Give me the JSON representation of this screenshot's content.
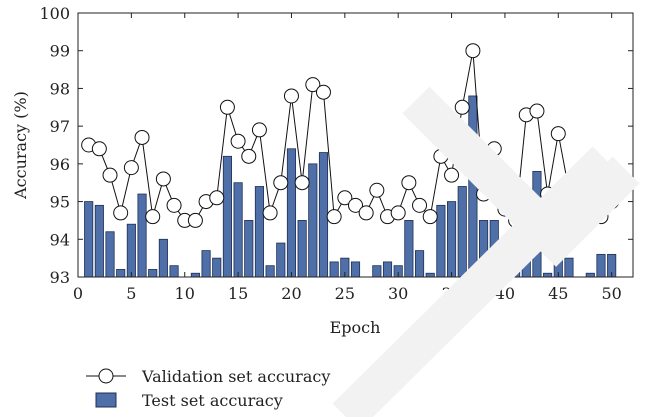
{
  "chart_data": {
    "type": "bar",
    "xlabel": "Epoch",
    "ylabel": "Accuracy (%)",
    "xlim": [
      0,
      52
    ],
    "ylim": [
      93,
      100
    ],
    "x_ticks": [
      0,
      5,
      10,
      15,
      20,
      25,
      30,
      35,
      40,
      45,
      50
    ],
    "y_ticks": [
      93,
      94,
      95,
      96,
      97,
      98,
      99,
      100
    ],
    "grid": false,
    "legend_position": "bottom-left",
    "colors": {
      "bar_fill": "#4f6fa8",
      "bar_stroke": "#1f2f55",
      "line": "#111111"
    },
    "epochs": [
      1,
      2,
      3,
      4,
      5,
      6,
      7,
      8,
      9,
      10,
      11,
      12,
      13,
      14,
      15,
      16,
      17,
      18,
      19,
      20,
      21,
      22,
      23,
      24,
      25,
      26,
      27,
      28,
      29,
      30,
      31,
      32,
      33,
      34,
      35,
      36,
      37,
      38,
      39,
      40,
      41,
      42,
      43,
      44,
      45,
      46,
      47,
      48,
      49,
      50
    ],
    "series": [
      {
        "name": "Validation set accuracy",
        "kind": "line",
        "values": [
          96.5,
          96.4,
          95.7,
          94.7,
          95.9,
          96.7,
          94.6,
          95.6,
          94.9,
          94.5,
          94.5,
          95.0,
          95.1,
          97.5,
          96.6,
          96.2,
          96.9,
          94.7,
          95.5,
          97.8,
          95.5,
          98.1,
          97.9,
          94.6,
          95.1,
          94.9,
          94.7,
          95.3,
          94.6,
          94.7,
          95.5,
          94.9,
          94.6,
          96.2,
          95.7,
          97.5,
          99.0,
          95.2,
          96.4,
          94.8,
          94.5,
          97.3,
          97.4,
          95.2,
          96.8,
          95.3,
          94.6,
          94.6,
          94.6,
          95.0
        ]
      },
      {
        "name": "Test set accuracy",
        "kind": "bar",
        "values": [
          95.0,
          94.9,
          94.2,
          93.2,
          94.4,
          95.2,
          93.2,
          94.0,
          93.3,
          93.0,
          93.1,
          93.7,
          93.5,
          96.2,
          95.5,
          94.5,
          95.4,
          93.3,
          93.9,
          96.4,
          94.5,
          96.0,
          96.3,
          93.4,
          93.5,
          93.4,
          93.0,
          93.3,
          93.4,
          93.3,
          94.5,
          93.7,
          93.1,
          94.9,
          95.0,
          95.4,
          97.8,
          94.5,
          94.5,
          93.3,
          93.4,
          95.1,
          95.8,
          93.1,
          94.4,
          93.5,
          93.0,
          93.1,
          93.6,
          93.6
        ]
      }
    ]
  }
}
